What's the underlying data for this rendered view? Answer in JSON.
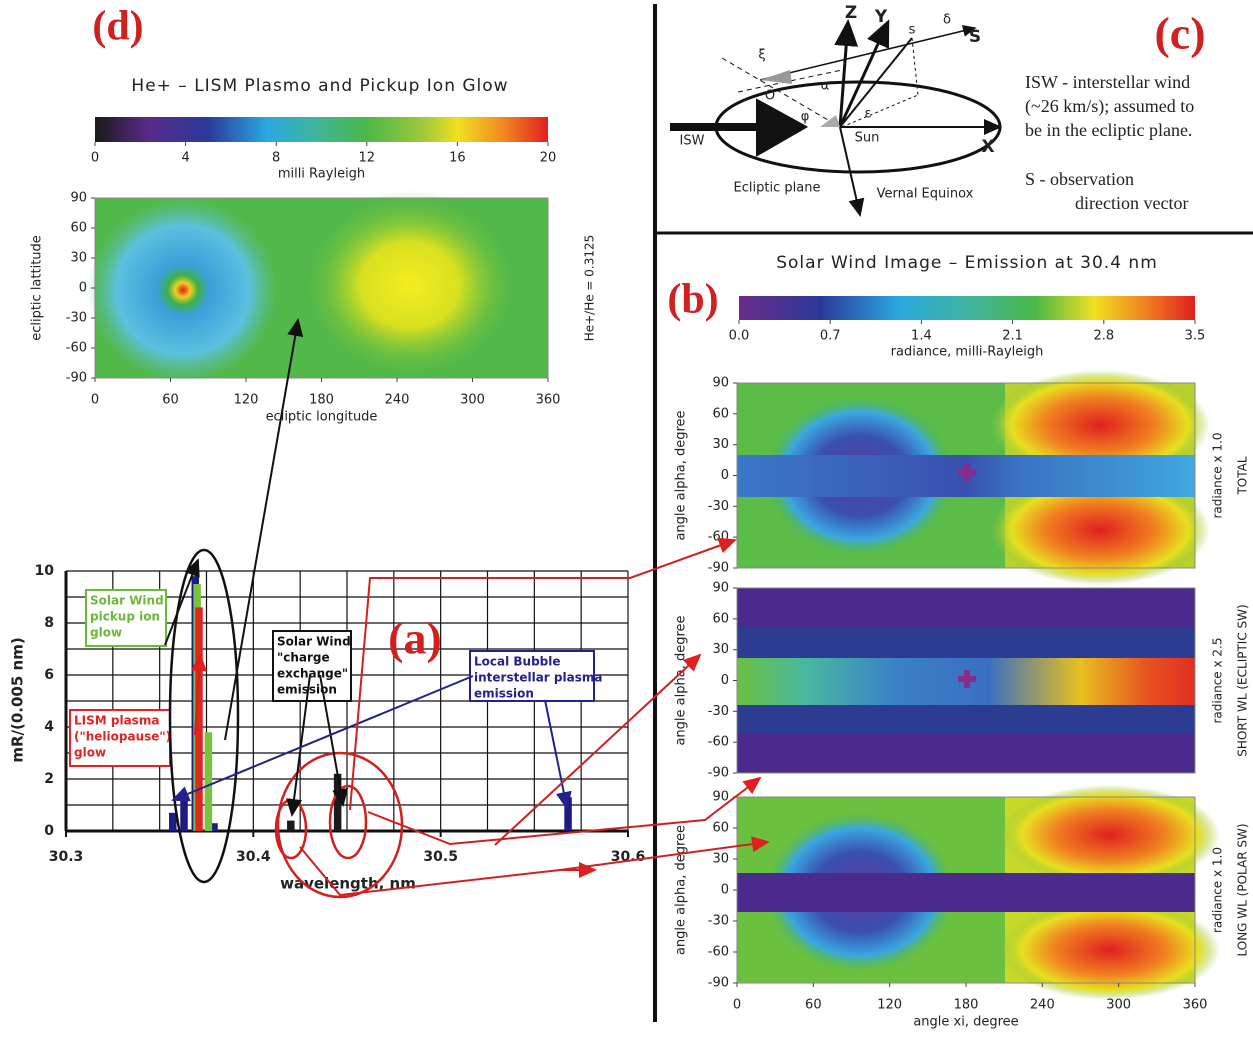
{
  "chart_data": [
    {
      "type": "heatmap",
      "panel_label": "(d)",
      "title": "He+  –  LISM Plasmo and Pickup Ion Glow",
      "xlabel": "ecliptic longitude",
      "ylabel": "ecliptic lattitude",
      "side_labels": [
        "He+/He = 0.3125"
      ],
      "xlim": [
        0,
        360
      ],
      "xticks": [
        0,
        60,
        120,
        180,
        240,
        300,
        360
      ],
      "ylim": [
        -90,
        90
      ],
      "yticks": [
        -90,
        -60,
        -30,
        0,
        30,
        60,
        90
      ],
      "colorbar": {
        "lim": [
          0,
          20
        ],
        "ticks": [
          0,
          4,
          8,
          12,
          16,
          20
        ],
        "label": "milli Rayleigh"
      }
    },
    {
      "type": "heatmap",
      "panel_label": "(b)",
      "title": "Solar Wind Image – Emission at 30.4 nm",
      "ylabel": "angle alpha, degree",
      "side_labels": [
        "radiance x 1.0",
        "TOTAL"
      ],
      "xlim": [
        0,
        360
      ],
      "ylim": [
        -90,
        90
      ],
      "yticks": [
        -90,
        -60,
        -30,
        0,
        30,
        60,
        90
      ],
      "colorbar": {
        "lim": [
          0,
          3.5
        ],
        "ticks": [
          {
            "value": 0,
            "label": "0.0"
          },
          0.7,
          1.4,
          2.1,
          2.8,
          3.5
        ],
        "label": "radiance, milli-Rayleigh"
      }
    },
    {
      "type": "heatmap",
      "ylabel": "angle alpha, degree",
      "side_labels": [
        "radiance x 2.5",
        "SHORT WL (ECLIPTIC SW)"
      ],
      "xlim": [
        0,
        360
      ],
      "ylim": [
        -90,
        90
      ],
      "yticks": [
        -90,
        -60,
        -30,
        0,
        30,
        60,
        90
      ]
    },
    {
      "type": "heatmap",
      "ylabel": "angle alpha, degree",
      "xlabel": "angle  xi, degree",
      "side_labels": [
        "radiance x 1.0",
        "LONG WL (POLAR SW)"
      ],
      "xlim": [
        0,
        360
      ],
      "xticks": [
        0,
        60,
        120,
        180,
        240,
        300,
        360
      ],
      "ylim": [
        -90,
        90
      ],
      "yticks": [
        -90,
        -60,
        -30,
        0,
        30,
        60,
        90
      ]
    },
    {
      "type": "bar",
      "panel_label": "(a)",
      "xlabel": "wavelength, nm",
      "ylabel": "mR/(0.005 nm)",
      "xlim": [
        30.3,
        30.6
      ],
      "xticks": [
        30.3,
        30.4,
        30.5,
        30.6
      ],
      "ylim": [
        0,
        10
      ],
      "yticks": [
        0,
        2,
        4,
        6,
        8,
        10
      ],
      "grid": true,
      "series": [
        {
          "color": "#1c1c82",
          "x": [
            30.357,
            30.363,
            30.369,
            30.379,
            30.568
          ],
          "values": [
            0.7,
            1.3,
            9.8,
            0.3,
            1.3
          ]
        },
        {
          "color": "#7cc242",
          "x": [
            30.37,
            30.376
          ],
          "values": [
            9.5,
            3.8
          ]
        },
        {
          "color": "#e02424",
          "x": [
            30.371
          ],
          "values": [
            8.6
          ]
        },
        {
          "color": "#1a1a1a",
          "x": [
            30.42,
            30.445
          ],
          "values": [
            0.4,
            2.2
          ]
        }
      ],
      "annotations": [
        {
          "lines": [
            "Solar Wind",
            "pickup ion",
            "glow"
          ],
          "color": "#6cb83a"
        },
        {
          "lines": [
            "LISM plasma",
            "(\"heliopause\")",
            "glow"
          ],
          "color": "#e02424"
        },
        {
          "lines": [
            "Solar Wind",
            "\"charge",
            "exchange\"",
            "emission"
          ],
          "color": "#111111"
        },
        {
          "lines": [
            "Local Bubble",
            "interstellar plasma",
            "emission"
          ],
          "color": "#22228a"
        }
      ]
    }
  ],
  "diagram": {
    "panel_label": "(c)",
    "note_isw": [
      "ISW  -  interstellar wind",
      "(~26 km/s); assumed to",
      "be in the ecliptic plane."
    ],
    "note_s": [
      "S  -   observation",
      "direction vector"
    ],
    "labels": {
      "z": "Z",
      "y": "Y",
      "x": "X",
      "s_axis": "S",
      "s": "s",
      "isw": "ISW",
      "sun": "Sun",
      "o": "O",
      "plane": "Ecliptic plane",
      "equinox": "Vernal Equinox",
      "alpha": "α",
      "phi": "φ",
      "xi": "ξ",
      "delta": "δ",
      "eps": "ε"
    }
  }
}
